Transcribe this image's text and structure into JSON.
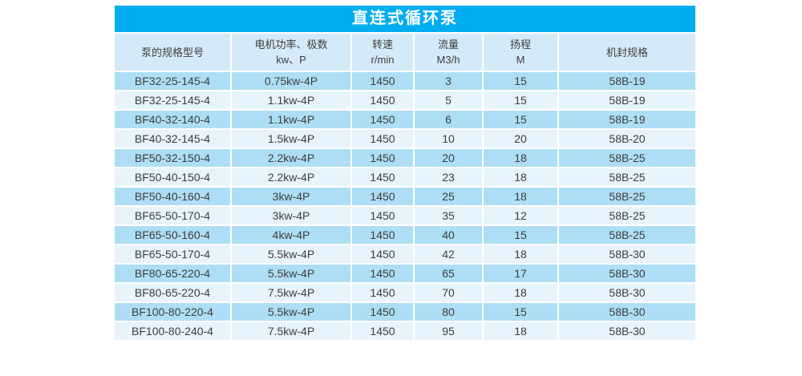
{
  "title": "直连式循环泵",
  "colors": {
    "title_bar": "#00AEEF",
    "title_text": "#FFFFFF",
    "header_bg": "#D5EAF8",
    "row_odd_bg": "#AEDEF5",
    "row_even_bg": "#E7F4FC",
    "text": "#3D3D3D"
  },
  "table": {
    "headers": [
      {
        "line1": "泵的规格型号",
        "line2": ""
      },
      {
        "line1": "电机功率、极数",
        "line2": "kw、P"
      },
      {
        "line1": "转速",
        "line2": "r/min"
      },
      {
        "line1": "流量",
        "line2": "M3/h"
      },
      {
        "line1": "扬程",
        "line2": "M"
      },
      {
        "line1": "机封规格",
        "line2": ""
      }
    ],
    "rows": [
      [
        "BF32-25-145-4",
        "0.75kw-4P",
        "1450",
        "3",
        "15",
        "58B-19"
      ],
      [
        "BF32-25-145-4",
        "1.1kw-4P",
        "1450",
        "5",
        "15",
        "58B-19"
      ],
      [
        "BF40-32-140-4",
        "1.1kw-4P",
        "1450",
        "6",
        "15",
        "58B-19"
      ],
      [
        "BF40-32-145-4",
        "1.5kw-4P",
        "1450",
        "10",
        "20",
        "58B-20"
      ],
      [
        "BF50-32-150-4",
        "2.2kw-4P",
        "1450",
        "20",
        "18",
        "58B-25"
      ],
      [
        "BF50-40-150-4",
        "2.2kw-4P",
        "1450",
        "23",
        "18",
        "58B-25"
      ],
      [
        "BF50-40-160-4",
        "3kw-4P",
        "1450",
        "25",
        "18",
        "58B-25"
      ],
      [
        "BF65-50-170-4",
        "3kw-4P",
        "1450",
        "35",
        "12",
        "58B-25"
      ],
      [
        "BF65-50-160-4",
        "4kw-4P",
        "1450",
        "40",
        "15",
        "58B-25"
      ],
      [
        "BF65-50-170-4",
        "5.5kw-4P",
        "1450",
        "42",
        "18",
        "58B-30"
      ],
      [
        "BF80-65-220-4",
        "5.5kw-4P",
        "1450",
        "65",
        "17",
        "58B-30"
      ],
      [
        "BF80-65-220-4",
        "7.5kw-4P",
        "1450",
        "70",
        "18",
        "58B-30"
      ],
      [
        "BF100-80-220-4",
        "5.5kw-4P",
        "1450",
        "80",
        "15",
        "58B-30"
      ],
      [
        "BF100-80-240-4",
        "7.5kw-4P",
        "1450",
        "95",
        "18",
        "58B-30"
      ]
    ]
  }
}
